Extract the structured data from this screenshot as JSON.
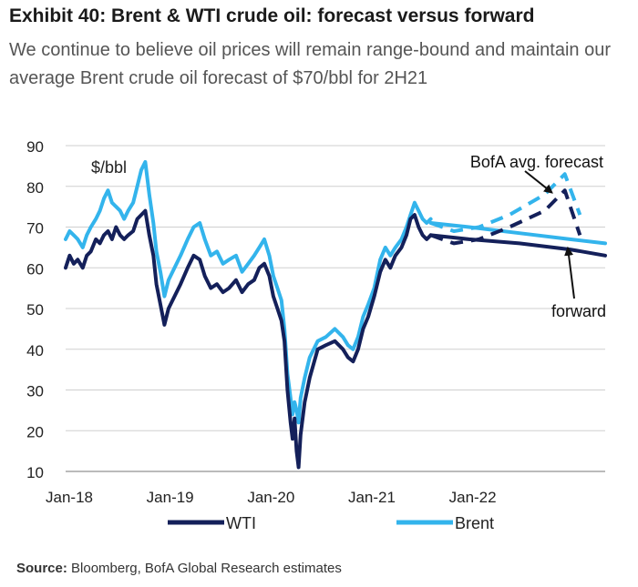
{
  "header": {
    "title": "Exhibit 40: Brent & WTI crude oil: forecast versus forward",
    "subtitle": "We continue to believe oil prices will remain range-bound and maintain our average Brent crude oil forecast of $70/bbl for 2H21"
  },
  "footer": {
    "source_label": "Source:",
    "source_text": " Bloomberg, BofA Global Research estimates"
  },
  "chart_data": {
    "type": "line",
    "title": "",
    "ylabel": "$/bbl",
    "xlabel": "",
    "ylim": [
      10,
      90
    ],
    "y_ticks": [
      "10",
      "20",
      "30",
      "40",
      "50",
      "60",
      "70",
      "80",
      "90"
    ],
    "x_ticks": [
      {
        "label": "Jan-18",
        "x": 2018.0
      },
      {
        "label": "Jan-19",
        "x": 2019.0
      },
      {
        "label": "Jan-20",
        "x": 2020.0
      },
      {
        "label": "Jan-21",
        "x": 2021.0
      },
      {
        "label": "Jan-22",
        "x": 2022.0
      }
    ],
    "xlim": [
      2018.0,
      2023.35
    ],
    "grid": "horizontal",
    "legend_position": "bottom",
    "colors": {
      "wti": "#14205a",
      "brent": "#33b4ec"
    },
    "series": [
      {
        "name": "WTI",
        "style": "solid",
        "x": [
          2018.0,
          2018.04,
          2018.08,
          2018.12,
          2018.17,
          2018.21,
          2018.25,
          2018.3,
          2018.34,
          2018.38,
          2018.42,
          2018.46,
          2018.5,
          2018.54,
          2018.58,
          2018.62,
          2018.67,
          2018.71,
          2018.75,
          2018.79,
          2018.83,
          2018.87,
          2018.9,
          2018.94,
          2018.98,
          2019.02,
          2019.08,
          2019.14,
          2019.21,
          2019.27,
          2019.33,
          2019.38,
          2019.44,
          2019.5,
          2019.56,
          2019.62,
          2019.69,
          2019.75,
          2019.81,
          2019.87,
          2019.92,
          2019.97,
          2020.02,
          2020.06,
          2020.1,
          2020.14,
          2020.17,
          2020.2,
          2020.23,
          2020.25,
          2020.27,
          2020.29,
          2020.31,
          2020.33,
          2020.37,
          2020.42,
          2020.5,
          2020.58,
          2020.67,
          2020.75,
          2020.8,
          2020.85,
          2020.9,
          2020.95,
          2021.0,
          2021.06,
          2021.12,
          2021.17,
          2021.22,
          2021.27,
          2021.33,
          2021.38,
          2021.42,
          2021.46,
          2021.5,
          2021.54,
          2021.58,
          2021.62
        ],
        "y": [
          60,
          63,
          61,
          62,
          60,
          63,
          64,
          67,
          66,
          68,
          69,
          67,
          70,
          68,
          67,
          68,
          69,
          72,
          73,
          74,
          68,
          63,
          56,
          51,
          46,
          50,
          53,
          56,
          60,
          63,
          62,
          58,
          55,
          56,
          54,
          55,
          57,
          54,
          56,
          57,
          60,
          61,
          58,
          53,
          50,
          47,
          42,
          30,
          22,
          18,
          23,
          15,
          11,
          19,
          27,
          33,
          40,
          41,
          42,
          40,
          38,
          37,
          40,
          45,
          48,
          53,
          59,
          62,
          60,
          63,
          65,
          68,
          72,
          73,
          70,
          68,
          67,
          68
        ]
      },
      {
        "name": "Brent",
        "style": "solid",
        "x": [
          2018.0,
          2018.04,
          2018.08,
          2018.12,
          2018.17,
          2018.21,
          2018.25,
          2018.3,
          2018.34,
          2018.38,
          2018.42,
          2018.46,
          2018.5,
          2018.54,
          2018.58,
          2018.62,
          2018.67,
          2018.71,
          2018.75,
          2018.79,
          2018.83,
          2018.87,
          2018.9,
          2018.94,
          2018.98,
          2019.02,
          2019.08,
          2019.14,
          2019.21,
          2019.27,
          2019.33,
          2019.38,
          2019.44,
          2019.5,
          2019.56,
          2019.62,
          2019.69,
          2019.75,
          2019.81,
          2019.87,
          2019.92,
          2019.97,
          2020.02,
          2020.06,
          2020.1,
          2020.14,
          2020.17,
          2020.2,
          2020.23,
          2020.25,
          2020.27,
          2020.29,
          2020.31,
          2020.33,
          2020.37,
          2020.42,
          2020.5,
          2020.58,
          2020.67,
          2020.75,
          2020.8,
          2020.85,
          2020.9,
          2020.95,
          2021.0,
          2021.06,
          2021.12,
          2021.17,
          2021.22,
          2021.27,
          2021.33,
          2021.38,
          2021.42,
          2021.46,
          2021.5,
          2021.54,
          2021.58,
          2021.62
        ],
        "y": [
          67,
          69,
          68,
          67,
          65,
          68,
          70,
          72,
          74,
          77,
          79,
          76,
          75,
          74,
          72,
          74,
          76,
          80,
          84,
          86,
          78,
          71,
          64,
          59,
          53,
          57,
          60,
          63,
          67,
          70,
          71,
          67,
          63,
          64,
          61,
          62,
          63,
          59,
          61,
          63,
          65,
          67,
          63,
          58,
          55,
          52,
          45,
          34,
          28,
          24,
          27,
          25,
          22,
          28,
          33,
          38,
          42,
          43,
          45,
          43,
          41,
          40,
          43,
          48,
          51,
          55,
          62,
          65,
          63,
          65,
          67,
          70,
          73,
          76,
          74,
          72,
          71,
          72
        ]
      },
      {
        "name": "WTI forward",
        "style": "solid",
        "x": [
          2021.62,
          2022.0,
          2022.5,
          2023.0,
          2023.35
        ],
        "y": [
          68,
          67,
          66,
          64.5,
          63
        ]
      },
      {
        "name": "Brent forward",
        "style": "solid",
        "x": [
          2021.62,
          2022.0,
          2022.5,
          2023.0,
          2023.35
        ],
        "y": [
          71,
          70,
          68.5,
          67,
          66
        ]
      },
      {
        "name": "WTI avg. forecast",
        "style": "dashed",
        "x": [
          2021.62,
          2021.85,
          2022.1,
          2022.4,
          2022.75,
          2022.95,
          2023.1
        ],
        "y": [
          68,
          66,
          67,
          70,
          74,
          79,
          68
        ]
      },
      {
        "name": "Brent avg. forecast",
        "style": "dashed",
        "x": [
          2021.62,
          2021.85,
          2022.1,
          2022.4,
          2022.75,
          2022.95,
          2023.1
        ],
        "y": [
          71,
          69,
          70,
          73,
          78,
          83,
          73
        ]
      }
    ],
    "legend": [
      {
        "label": "WTI",
        "series": "WTI"
      },
      {
        "label": "Brent",
        "series": "Brent"
      }
    ],
    "annotations": [
      {
        "text": "BofA avg. forecast",
        "target": "forecast"
      },
      {
        "text": "forward",
        "target": "forward"
      }
    ]
  }
}
